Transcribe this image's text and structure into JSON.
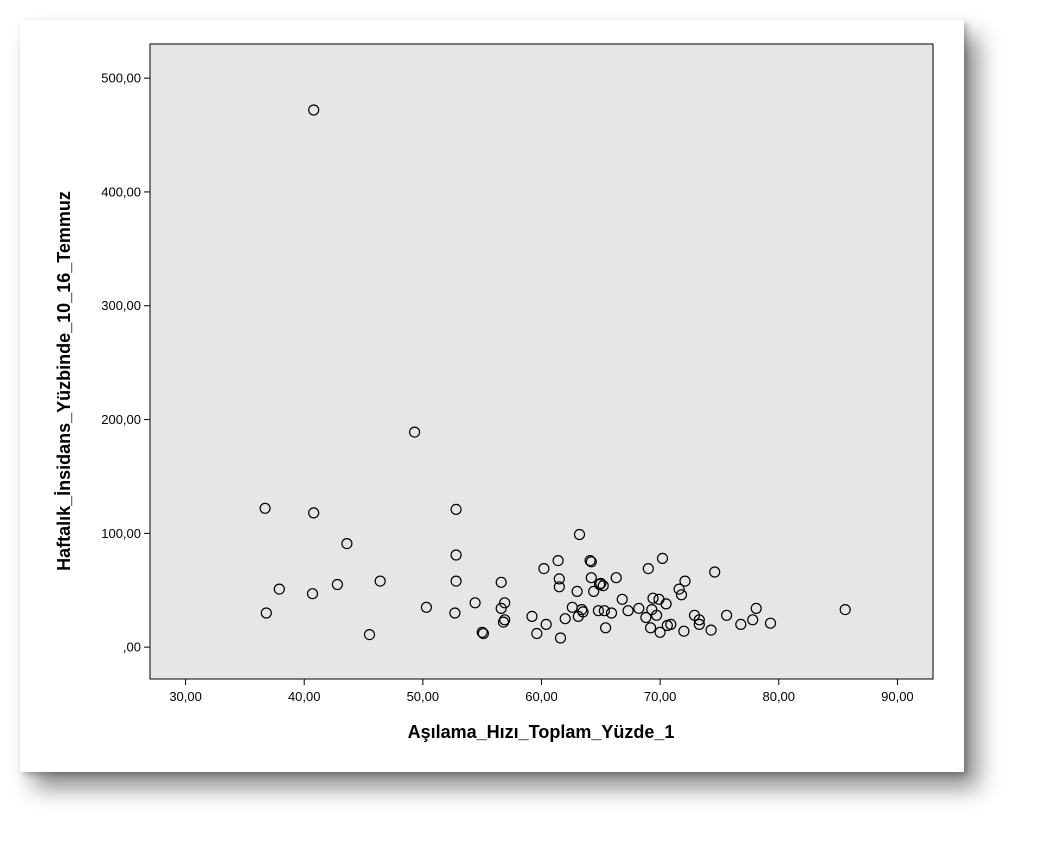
{
  "chart_data": {
    "type": "scatter",
    "title": "",
    "xlabel": "Aşılama_Hızı_Toplam_Yüzde_1",
    "ylabel": "Haftalık_İnsidans_Yüzbinde_10_16_Temmuz",
    "xlim": [
      27,
      93
    ],
    "ylim": [
      -28,
      530
    ],
    "x_ticks": [
      30,
      40,
      50,
      60,
      70,
      80,
      90
    ],
    "x_tick_labels": [
      "30,00",
      "40,00",
      "50,00",
      "60,00",
      "70,00",
      "80,00",
      "90,00"
    ],
    "y_ticks": [
      0,
      100,
      200,
      300,
      400,
      500
    ],
    "y_tick_labels": [
      ",00",
      "100,00",
      "200,00",
      "300,00",
      "400,00",
      "500,00"
    ],
    "grid": false,
    "colors": {
      "plot_background": "#e6e6e6",
      "marker": "#000000",
      "axis": "#000000"
    },
    "points": [
      [
        40.8,
        472
      ],
      [
        49.3,
        189
      ],
      [
        36.7,
        122
      ],
      [
        40.8,
        118
      ],
      [
        52.8,
        121
      ],
      [
        43.6,
        91
      ],
      [
        52.8,
        81
      ],
      [
        37.9,
        51
      ],
      [
        36.8,
        30
      ],
      [
        40.7,
        47
      ],
      [
        42.8,
        55
      ],
      [
        46.4,
        58
      ],
      [
        45.5,
        11
      ],
      [
        50.3,
        35
      ],
      [
        52.8,
        58
      ],
      [
        52.7,
        30
      ],
      [
        54.4,
        39
      ],
      [
        55.0,
        13
      ],
      [
        55.1,
        12
      ],
      [
        56.6,
        57
      ],
      [
        56.6,
        34
      ],
      [
        56.9,
        39
      ],
      [
        56.8,
        22
      ],
      [
        56.9,
        24
      ],
      [
        59.2,
        27
      ],
      [
        59.6,
        12
      ],
      [
        60.2,
        69
      ],
      [
        60.4,
        20
      ],
      [
        61.4,
        76
      ],
      [
        61.5,
        60
      ],
      [
        61.5,
        53
      ],
      [
        61.6,
        8
      ],
      [
        62.0,
        25
      ],
      [
        62.6,
        35
      ],
      [
        63.0,
        49
      ],
      [
        63.2,
        99
      ],
      [
        63.1,
        27
      ],
      [
        63.4,
        33
      ],
      [
        63.5,
        31
      ],
      [
        64.1,
        76
      ],
      [
        64.2,
        75
      ],
      [
        64.2,
        61
      ],
      [
        64.4,
        49
      ],
      [
        64.8,
        32
      ],
      [
        64.9,
        55
      ],
      [
        65.0,
        56
      ],
      [
        65.2,
        54
      ],
      [
        65.3,
        32
      ],
      [
        65.4,
        17
      ],
      [
        65.9,
        30
      ],
      [
        66.3,
        61
      ],
      [
        66.8,
        42
      ],
      [
        67.3,
        32
      ],
      [
        68.2,
        34
      ],
      [
        68.8,
        26
      ],
      [
        69.0,
        69
      ],
      [
        69.2,
        17
      ],
      [
        69.4,
        43
      ],
      [
        69.3,
        33
      ],
      [
        69.7,
        28
      ],
      [
        69.9,
        42
      ],
      [
        70.0,
        13
      ],
      [
        70.2,
        78
      ],
      [
        70.5,
        38
      ],
      [
        70.6,
        19
      ],
      [
        70.9,
        20
      ],
      [
        71.6,
        51
      ],
      [
        71.8,
        46
      ],
      [
        72.1,
        58
      ],
      [
        72.0,
        14
      ],
      [
        72.9,
        28
      ],
      [
        73.3,
        24
      ],
      [
        73.3,
        20
      ],
      [
        74.3,
        15
      ],
      [
        74.6,
        66
      ],
      [
        75.6,
        28
      ],
      [
        76.8,
        20
      ],
      [
        77.8,
        24
      ],
      [
        78.1,
        34
      ],
      [
        79.3,
        21
      ],
      [
        85.6,
        33
      ]
    ]
  }
}
